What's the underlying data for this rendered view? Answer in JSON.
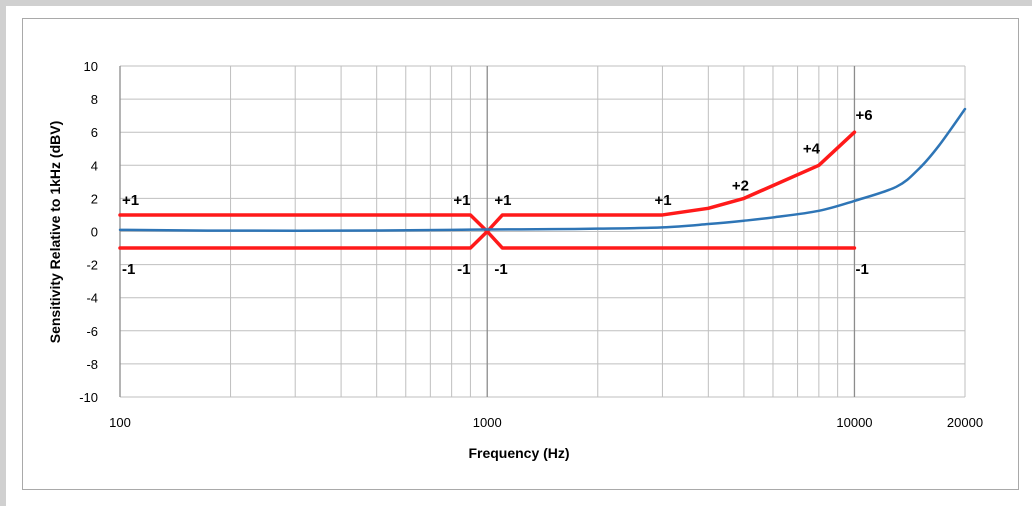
{
  "chart_data": {
    "type": "line",
    "xlabel": "Frequency (Hz)",
    "ylabel": "Sensitivity Relative to 1kHz (dBV)",
    "xscale": "log",
    "xlim": [
      100,
      20000
    ],
    "ylim": [
      -10,
      10
    ],
    "x_tick_labels": [
      "100",
      "1000",
      "10000",
      "20000"
    ],
    "y_tick_labels": [
      "10",
      "8",
      "6",
      "4",
      "2",
      "0",
      "-2",
      "-4",
      "-6",
      "-8",
      "-10"
    ],
    "grid": true,
    "legend": "none",
    "colors": {
      "response": "#2e75b6",
      "limits": "#ff1a1a",
      "grid": "#bfbfbf"
    },
    "series": [
      {
        "role": "response",
        "x": [
          100,
          200,
          500,
          800,
          1000,
          1500,
          2000,
          3000,
          4000,
          5000,
          6000,
          8000,
          10000,
          13000,
          15000,
          17000,
          20000
        ],
        "y": [
          0.1,
          0.05,
          0.06,
          0.1,
          0.12,
          0.14,
          0.17,
          0.25,
          0.45,
          0.65,
          0.85,
          1.25,
          1.85,
          2.7,
          3.8,
          5.2,
          7.4
        ]
      },
      {
        "role": "upper-limit",
        "x": [
          100,
          900,
          1000,
          1100,
          3000,
          4000,
          5000,
          8000,
          10000
        ],
        "y": [
          1,
          1,
          0,
          1,
          1,
          1.4,
          2,
          4,
          6
        ]
      },
      {
        "role": "lower-limit",
        "x": [
          100,
          900,
          1000,
          1100,
          10000
        ],
        "y": [
          -1,
          -1,
          0,
          -1,
          -1
        ]
      }
    ],
    "annotations": [
      {
        "text": "+1",
        "x": 100,
        "y": 1
      },
      {
        "text": "-1",
        "x": 100,
        "y": -1
      },
      {
        "text": "+1",
        "x": 900,
        "y": 1
      },
      {
        "text": "-1",
        "x": 900,
        "y": -1
      },
      {
        "text": "+1",
        "x": 1100,
        "y": 1
      },
      {
        "text": "-1",
        "x": 1100,
        "y": -1
      },
      {
        "text": "+1",
        "x": 3000,
        "y": 1
      },
      {
        "text": "+2",
        "x": 5000,
        "y": 2
      },
      {
        "text": "+4",
        "x": 8000,
        "y": 4
      },
      {
        "text": "+6",
        "x": 10000,
        "y": 6
      },
      {
        "text": "-1",
        "x": 10000,
        "y": -1
      }
    ]
  }
}
